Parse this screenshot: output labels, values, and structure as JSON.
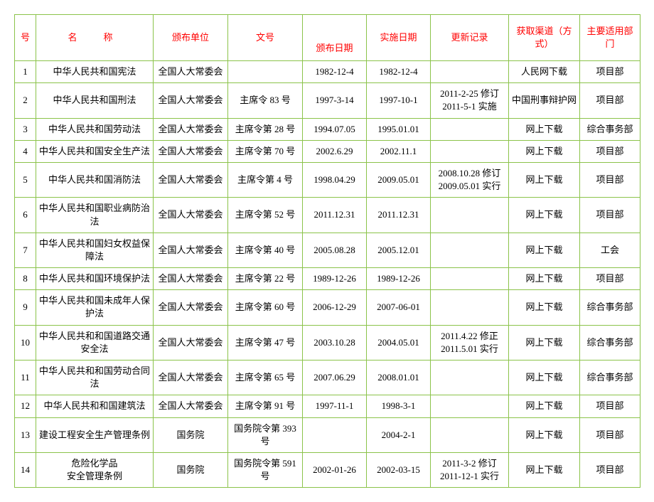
{
  "border_color": "#8bc34a",
  "header_color": "#ff0000",
  "columns": {
    "no": "号",
    "name": "名　称",
    "unit": "颁布单位",
    "doc": "文号",
    "date1": "颁布日期",
    "date2": "实施日期",
    "update": "更新记录",
    "channel": "获取渠道（方式）",
    "dept": "主要适用部门"
  },
  "rows": [
    {
      "no": "1",
      "name": "中华人民共和国宪法",
      "unit": "全国人大常委会",
      "doc": "",
      "date1": "1982-12-4",
      "date2": "1982-12-4",
      "update": "",
      "channel": "人民网下载",
      "dept": "项目部"
    },
    {
      "no": "2",
      "name": "中华人民共和国刑法",
      "unit": "全国人大常委会",
      "doc": "主席令 83 号",
      "date1": "1997-3-14",
      "date2": "1997-10-1",
      "update": "2011-2-25 修订\n2011-5-1 实施",
      "channel": "中国刑事辩护网",
      "dept": "项目部"
    },
    {
      "no": "3",
      "name": "中华人民共和国劳动法",
      "unit": "全国人大常委会",
      "doc": "主席令第 28 号",
      "date1": "1994.07.05",
      "date2": "1995.01.01",
      "update": "",
      "channel": "网上下载",
      "dept": "综合事务部"
    },
    {
      "no": "4",
      "name": "中华人民共和国安全生产法",
      "unit": "全国人大常委会",
      "doc": "主席令第 70 号",
      "date1": "2002.6.29",
      "date2": "2002.11.1",
      "update": "",
      "channel": "网上下载",
      "dept": "项目部"
    },
    {
      "no": "5",
      "name": "中华人民共和国消防法",
      "unit": "全国人大常委会",
      "doc": "主席令第 4 号",
      "date1": "1998.04.29",
      "date2": "2009.05.01",
      "update": "2008.10.28 修订\n2009.05.01 实行",
      "channel": "网上下载",
      "dept": "项目部"
    },
    {
      "no": "6",
      "name": "中华人民共和国职业病防治法",
      "unit": "全国人大常委会",
      "doc": "主席令第 52 号",
      "date1": "2011.12.31",
      "date2": "2011.12.31",
      "update": "",
      "channel": "网上下载",
      "dept": "项目部"
    },
    {
      "no": "7",
      "name": "中华人民共和国妇女权益保障法",
      "unit": "全国人大常委会",
      "doc": "主席令第 40 号",
      "date1": "2005.08.28",
      "date2": "2005.12.01",
      "update": "",
      "channel": "网上下载",
      "dept": "工会"
    },
    {
      "no": "8",
      "name": "中华人民共和国环境保护法",
      "unit": "全国人大常委会",
      "doc": "主席令第 22 号",
      "date1": "1989-12-26",
      "date2": "1989-12-26",
      "update": "",
      "channel": "网上下载",
      "dept": "项目部"
    },
    {
      "no": "9",
      "name": "中华人民共和国未成年人保护法",
      "unit": "全国人大常委会",
      "doc": "主席令第 60 号",
      "date1": "2006-12-29",
      "date2": "2007-06-01",
      "update": "",
      "channel": "网上下载",
      "dept": "综合事务部"
    },
    {
      "no": "10",
      "name": "中华人民共和和国道路交通安全法",
      "unit": "全国人大常委会",
      "doc": "主席令第 47 号",
      "date1": "2003.10.28",
      "date2": "2004.05.01",
      "update": "2011.4.22 修正\n2011.5.01 实行",
      "channel": "网上下载",
      "dept": "综合事务部"
    },
    {
      "no": "11",
      "name": "中华人民共和和国劳动合同法",
      "unit": "全国人大常委会",
      "doc": "主席令第 65 号",
      "date1": "2007.06.29",
      "date2": "2008.01.01",
      "update": "",
      "channel": "网上下载",
      "dept": "综合事务部"
    },
    {
      "no": "12",
      "name": "中华人民共和和国建筑法",
      "unit": "全国人大常委会",
      "doc": "主席令第 91 号",
      "date1": "1997-11-1",
      "date2": "1998-3-1",
      "update": "",
      "channel": "网上下载",
      "dept": "项目部"
    },
    {
      "no": "13",
      "name": "建设工程安全生产管理条例",
      "unit": "国务院",
      "doc": "国务院令第 393号",
      "date1": "",
      "date2": "2004-2-1",
      "update": "",
      "channel": "网上下载",
      "dept": "项目部"
    },
    {
      "no": "14",
      "name": "危险化学品\n安全管理条例",
      "unit": "国务院",
      "doc": "国务院令第 591号",
      "date1": "2002-01-26",
      "date2": "2002-03-15",
      "update": "2011-3-2 修订\n2011-12-1 实行",
      "channel": "网上下载",
      "dept": "项目部"
    }
  ]
}
